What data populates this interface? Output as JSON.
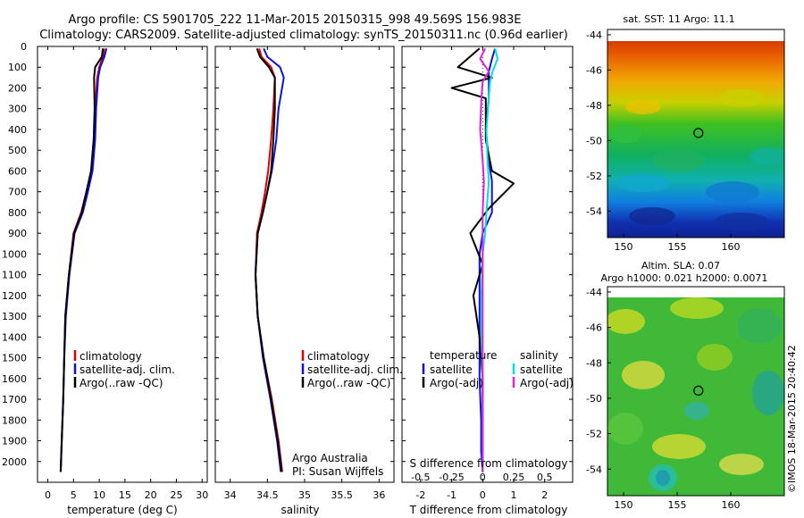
{
  "header": {
    "title_line1": "Argo profile: CS 5901705_222 11-Mar-2015 20150315_998 49.569S 156.983E",
    "title_line2": "Climatology: CARS2009. Satellite-adjusted climatology: synTS_20150311.nc (0.96d earlier)"
  },
  "colors": {
    "climatology": "#e00000",
    "satellite": "#1010e0",
    "argo": "#000000",
    "satellite_salinity": "#00e0e0",
    "argo_salinity": "#e020e0"
  },
  "chart_data": [
    {
      "type": "line",
      "xlabel": "temperature (deg C)",
      "ylim": [
        2100,
        0
      ],
      "xlim": [
        -2,
        31
      ],
      "xticks": [
        "0",
        "5",
        "10",
        "15",
        "20",
        "25",
        "30"
      ],
      "yticks": [
        "0",
        "100",
        "200",
        "300",
        "400",
        "500",
        "600",
        "700",
        "800",
        "900",
        "1000",
        "1100",
        "1200",
        "1300",
        "1400",
        "1500",
        "1600",
        "1700",
        "1800",
        "1900",
        "2000"
      ],
      "legend": [
        "climatology",
        "satellite-adj. clim.",
        "Argo(..raw -QC)"
      ],
      "series": [
        {
          "name": "climatology",
          "x": [
            11.0,
            10.7,
            10.0,
            9.6,
            9.2,
            9.0,
            8.5,
            7.5,
            6.5,
            5.0,
            4.1,
            3.4,
            3.2,
            3.0,
            2.7,
            2.5
          ],
          "y": [
            10,
            50,
            100,
            150,
            300,
            450,
            600,
            700,
            800,
            900,
            1100,
            1300,
            1500,
            1700,
            1900,
            2050
          ]
        },
        {
          "name": "satellite-adj. clim.",
          "x": [
            11.4,
            11.0,
            10.2,
            9.8,
            9.4,
            9.2,
            8.7,
            7.8,
            6.8,
            5.2,
            4.2,
            3.5,
            3.2,
            3.0,
            2.7,
            2.5
          ],
          "y": [
            10,
            50,
            100,
            150,
            300,
            450,
            600,
            700,
            800,
            900,
            1100,
            1300,
            1500,
            1700,
            1900,
            2050
          ]
        },
        {
          "name": "Argo(..raw -QC)",
          "x": [
            10.7,
            10.5,
            9.2,
            9.0,
            9.1,
            8.9,
            8.4,
            7.5,
            6.6,
            5.1,
            4.1,
            3.4,
            3.2,
            3.0,
            2.7,
            2.5
          ],
          "y": [
            10,
            50,
            100,
            150,
            300,
            450,
            600,
            700,
            800,
            900,
            1100,
            1300,
            1500,
            1700,
            1900,
            2050
          ]
        }
      ]
    },
    {
      "type": "line",
      "xlabel": "salinity",
      "ylim": [
        2100,
        0
      ],
      "xlim": [
        33.8,
        36.2
      ],
      "xticks": [
        "34",
        "34.5",
        "35",
        "35.5",
        "36"
      ],
      "legend": [
        "climatology",
        "satellite-adj. clim.",
        "Argo(..raw -QC)"
      ],
      "annotation": [
        "Argo Australia",
        "PI: Susan Wijffels"
      ],
      "series": [
        {
          "name": "climatology",
          "x": [
            34.39,
            34.42,
            34.55,
            34.6,
            34.58,
            34.55,
            34.51,
            34.47,
            34.42,
            34.36,
            34.34,
            34.37,
            34.45,
            34.56,
            34.65,
            34.7
          ],
          "y": [
            10,
            50,
            100,
            150,
            300,
            450,
            600,
            700,
            800,
            900,
            1100,
            1300,
            1500,
            1700,
            1900,
            2050
          ]
        },
        {
          "name": "satellite-adj. clim.",
          "x": [
            34.45,
            34.5,
            34.67,
            34.72,
            34.65,
            34.62,
            34.56,
            34.5,
            34.44,
            34.37,
            34.34,
            34.37,
            34.44,
            34.54,
            34.63,
            34.68
          ],
          "y": [
            10,
            50,
            100,
            150,
            300,
            450,
            600,
            700,
            800,
            900,
            1100,
            1300,
            1500,
            1700,
            1900,
            2050
          ]
        },
        {
          "name": "Argo(..raw -QC)",
          "x": [
            34.36,
            34.4,
            34.52,
            34.6,
            34.6,
            34.58,
            34.55,
            34.5,
            34.44,
            34.37,
            34.34,
            34.37,
            34.45,
            34.55,
            34.64,
            34.69
          ],
          "y": [
            10,
            50,
            100,
            150,
            300,
            450,
            600,
            700,
            800,
            900,
            1100,
            1300,
            1500,
            1700,
            1900,
            2050
          ]
        }
      ]
    },
    {
      "type": "line",
      "xlabel": "T difference from climatology",
      "x2label": "S difference from climatology",
      "ylim": [
        2100,
        0
      ],
      "xlim": [
        -2.6,
        2.9
      ],
      "xticks": [
        "-2",
        "-1",
        "0",
        "1",
        "2"
      ],
      "x2lim": [
        -0.65,
        0.725
      ],
      "x2ticks": [
        "-0.5",
        "-0.25",
        "0",
        "0.25",
        "0.5"
      ],
      "legend_titles": [
        "temperature",
        "salinity"
      ],
      "legend": [
        "satellite",
        "Argo(-adj)",
        "satellite",
        "Argo(-adj)"
      ],
      "series": [
        {
          "name": "satellite",
          "axis": "T",
          "x": [
            0.4,
            0.3,
            0.2,
            0.2,
            0.2,
            0.1,
            0.2,
            0.3,
            0.3,
            0.0,
            -0.1,
            -0.1,
            -0.1,
            -0.1,
            -0.05,
            -0.05,
            0.0
          ],
          "y": [
            10,
            60,
            120,
            170,
            250,
            400,
            550,
            650,
            800,
            900,
            1000,
            1200,
            1400,
            1600,
            1800,
            1950,
            2050
          ]
        },
        {
          "name": "Argo(-adj)",
          "axis": "T",
          "x": [
            -0.1,
            -0.8,
            0.3,
            -1.0,
            0.1,
            0.1,
            0.3,
            1.0,
            0.2,
            -0.4,
            0.0,
            -0.3,
            -0.1,
            0.0,
            0.0,
            0.0,
            0.0
          ],
          "y": [
            10,
            100,
            150,
            200,
            250,
            450,
            600,
            660,
            780,
            900,
            1050,
            1200,
            1400,
            1600,
            1800,
            1950,
            2050
          ]
        },
        {
          "name": "satellite",
          "axis": "S",
          "x": [
            0.1,
            0.12,
            0.08,
            0.06,
            0.05,
            0.03,
            0.04,
            0.05,
            0.03,
            0.02,
            0.0,
            -0.01,
            -0.01,
            0.0,
            0.0,
            0.0,
            0.0
          ],
          "y": [
            10,
            60,
            120,
            170,
            250,
            400,
            550,
            650,
            800,
            900,
            1000,
            1200,
            1400,
            1600,
            1800,
            1950,
            2050
          ]
        },
        {
          "name": "Argo(-adj)",
          "axis": "S",
          "x": [
            0.02,
            -0.02,
            0.05,
            0.0,
            -0.01,
            -0.02,
            0.0,
            0.01,
            0.0,
            0.0,
            0.0,
            0.0,
            0.0,
            0.0,
            0.0,
            0.0,
            0.0
          ],
          "y": [
            10,
            60,
            120,
            170,
            250,
            400,
            550,
            650,
            800,
            900,
            1000,
            1200,
            1400,
            1600,
            1800,
            1950,
            2050
          ]
        }
      ]
    },
    {
      "type": "heatmap",
      "title": "sat. SST: 11  Argo: 11.1",
      "xlim": [
        148.5,
        165
      ],
      "ylim": [
        -55.5,
        -43.7
      ],
      "xticks": [
        "150",
        "155",
        "160"
      ],
      "yticks": [
        "-44",
        "-46",
        "-48",
        "-50",
        "-52",
        "-54"
      ],
      "marker": {
        "lon": 156.983,
        "lat": -49.569
      }
    },
    {
      "type": "heatmap",
      "title_line1": "Altim. SLA: 0.07",
      "title_line2": "Argo h1000: 0.021 h2000: 0.0071",
      "xlim": [
        148.5,
        165
      ],
      "ylim": [
        -55.5,
        -43.7
      ],
      "xticks": [
        "150",
        "155",
        "160"
      ],
      "yticks": [
        "-44",
        "-46",
        "-48",
        "-50",
        "-52",
        "-54"
      ],
      "marker": {
        "lon": 156.983,
        "lat": -49.569
      }
    }
  ],
  "footer": {
    "stamp": "©IMOS 18-Mar-2015 20:40:42"
  }
}
